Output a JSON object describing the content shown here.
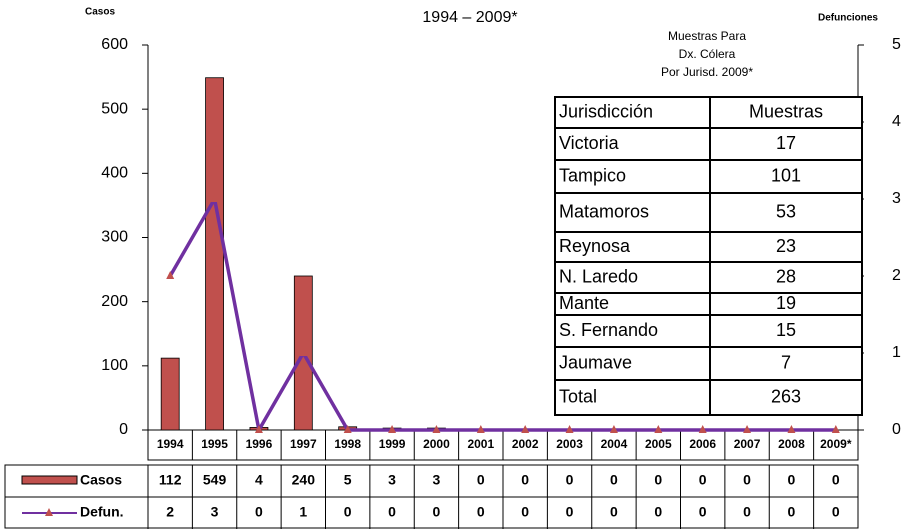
{
  "chart_data": {
    "type": "bar",
    "title": "1994 – 2009*",
    "y_label": "Casos",
    "y2_label": "Defunciones",
    "categories": [
      "1994",
      "1995",
      "1996",
      "1997",
      "1998",
      "1999",
      "2000",
      "2001",
      "2002",
      "2003",
      "2004",
      "2005",
      "2006",
      "2007",
      "2008",
      "2009*"
    ],
    "series": [
      {
        "name": "Casos",
        "type": "bar",
        "color": "#c0504d",
        "values": [
          112,
          549,
          4,
          240,
          5,
          3,
          3,
          0,
          0,
          0,
          0,
          0,
          0,
          0,
          0,
          0
        ]
      },
      {
        "name": "Defun.",
        "type": "line",
        "axis": "y2",
        "color": "#7030a0",
        "marker_color": "#c0504d",
        "values": [
          2,
          3,
          0,
          1,
          0,
          0,
          0,
          0,
          0,
          0,
          0,
          0,
          0,
          0,
          0,
          0
        ]
      }
    ],
    "ylim": [
      0,
      600
    ],
    "yticks": [
      0,
      100,
      200,
      300,
      400,
      500,
      600
    ],
    "y2lim": [
      0,
      5
    ],
    "y2ticks": [
      0,
      1,
      2,
      3,
      4,
      5
    ]
  },
  "inset_table": {
    "title": [
      "Muestras Para",
      "Dx. Cólera",
      "Por Jurisd.  2009*"
    ],
    "header": [
      "Jurisdicción",
      "Muestras"
    ],
    "rows": [
      [
        "Victoria",
        17
      ],
      [
        "Tampico",
        101
      ],
      [
        "Matamoros",
        53
      ],
      [
        "Reynosa",
        23
      ],
      [
        "N. Laredo",
        28
      ],
      [
        "Mante",
        19
      ],
      [
        "S. Fernando",
        15
      ],
      [
        "Jaumave",
        7
      ],
      [
        "Total",
        263
      ]
    ]
  }
}
